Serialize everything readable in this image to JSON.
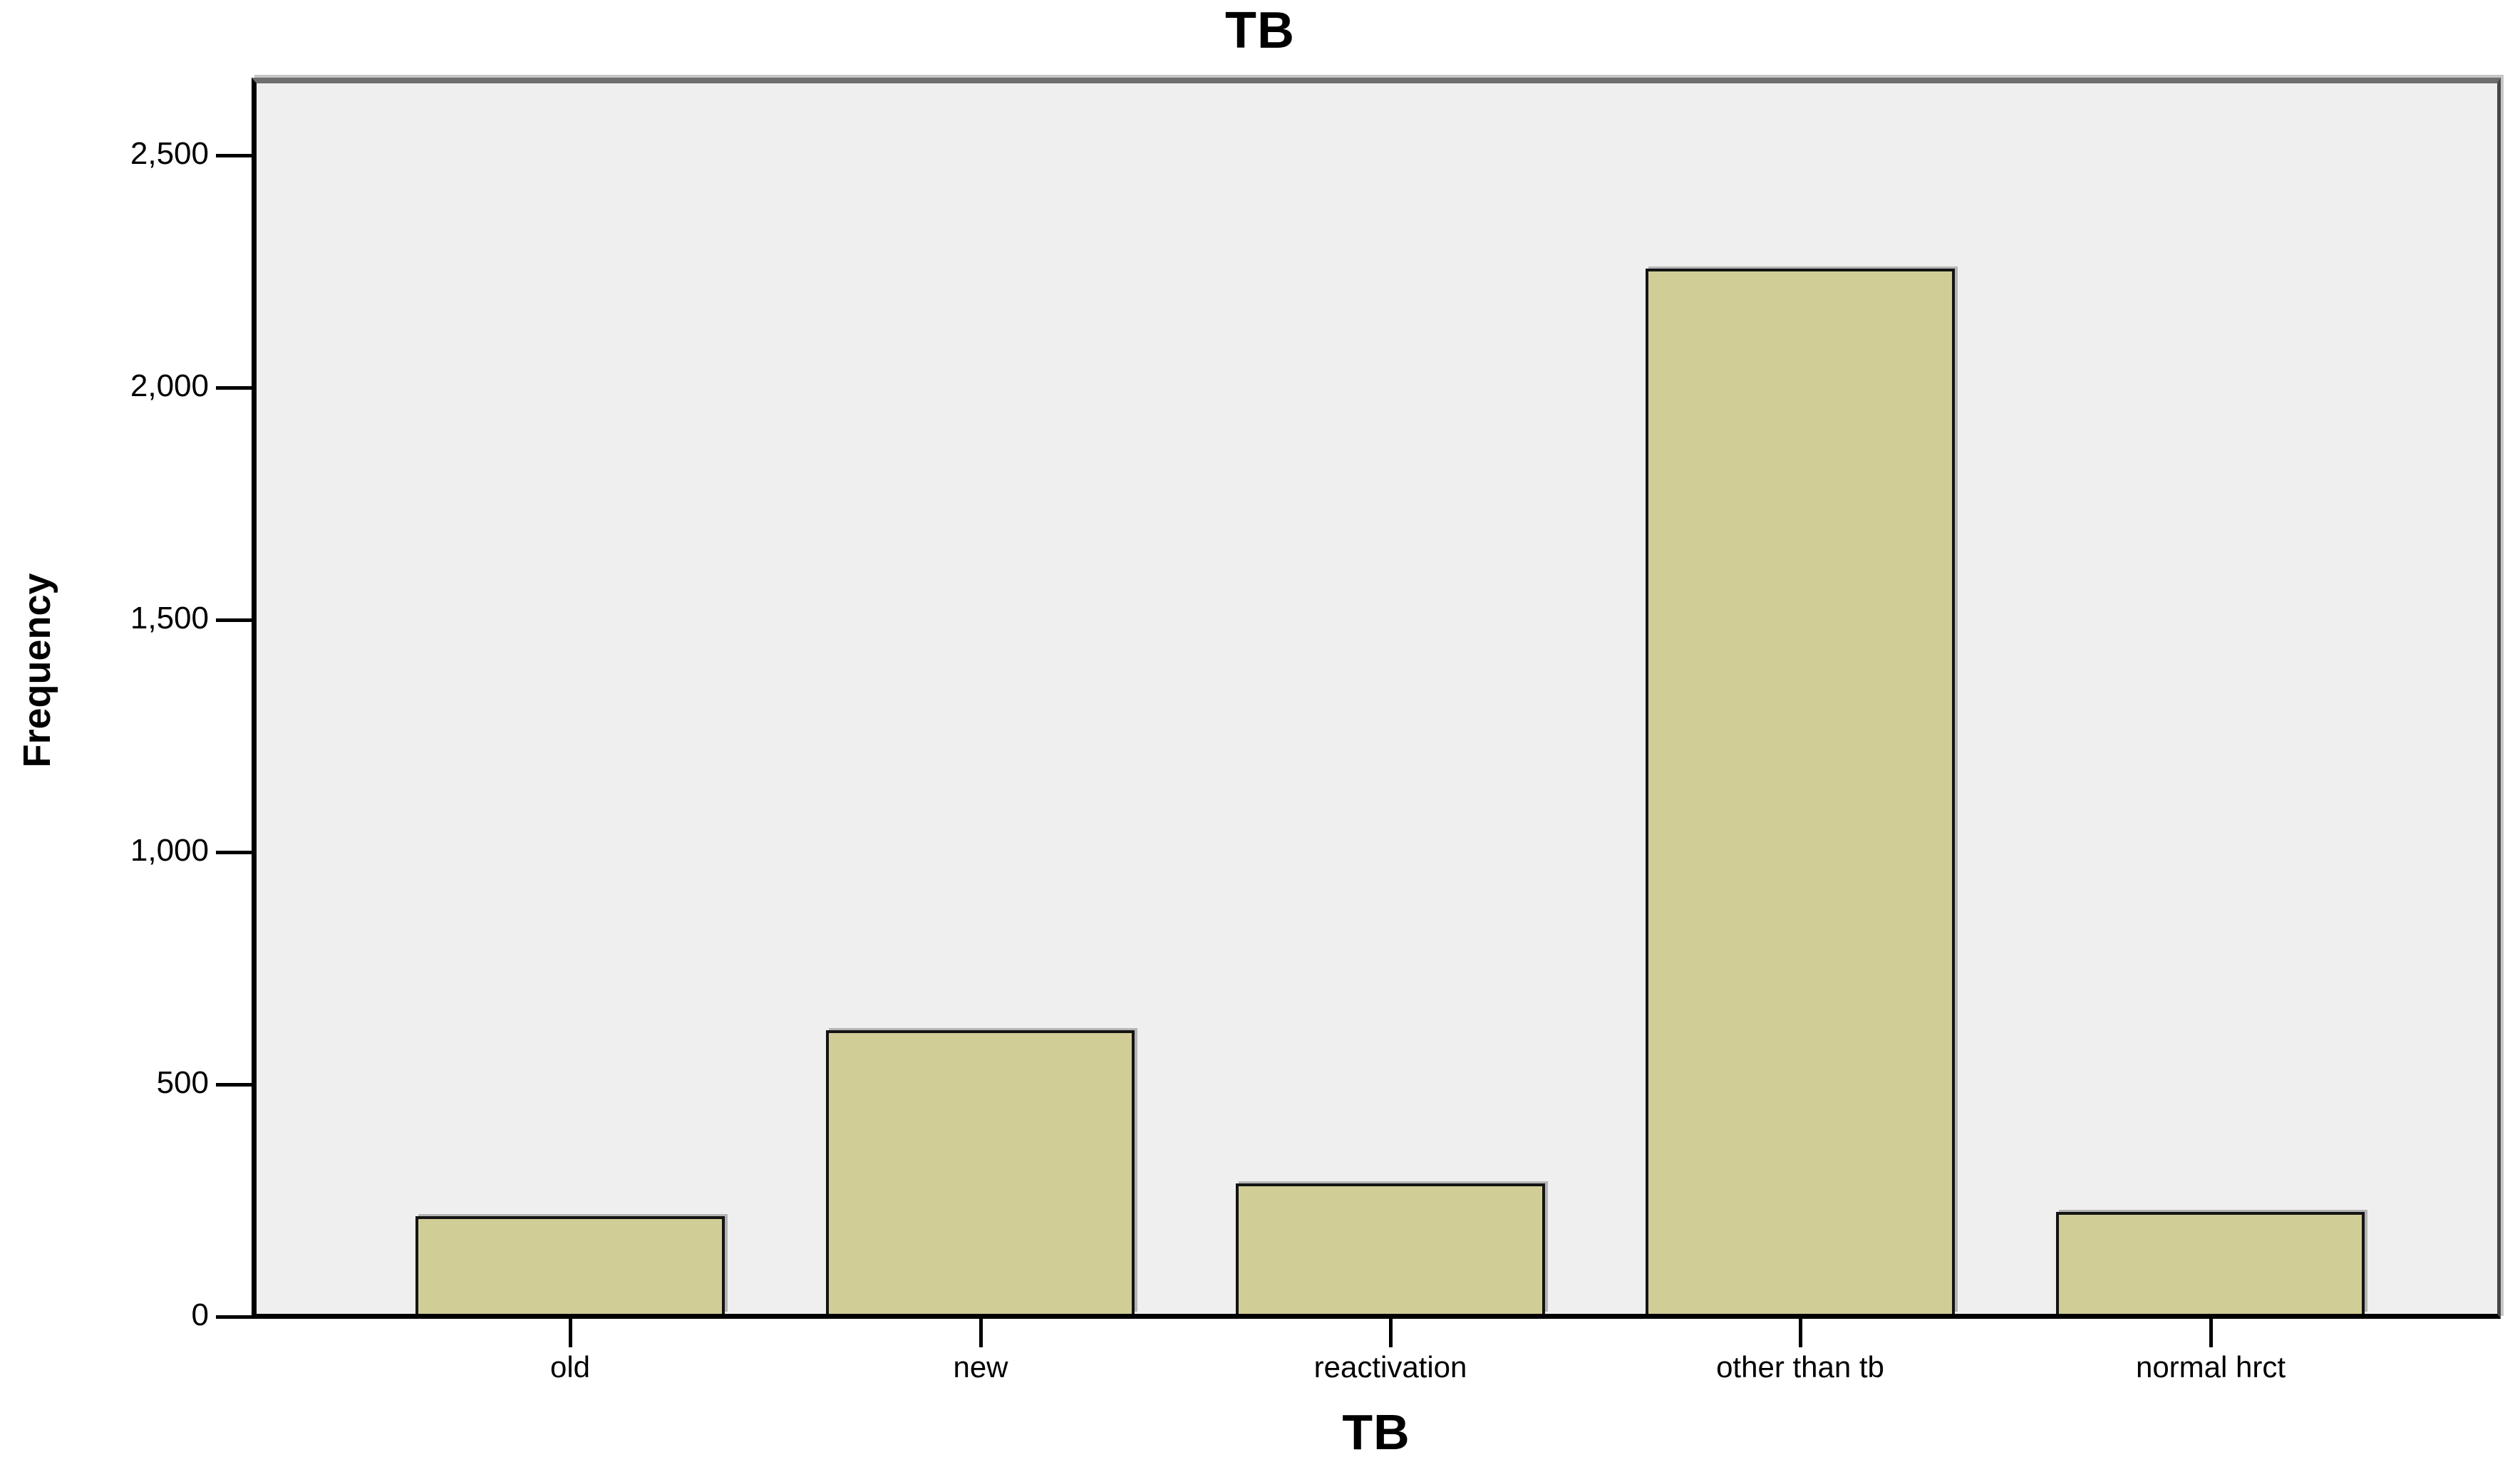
{
  "figure": {
    "title": "TB",
    "y_axis_title": "Frequency",
    "x_axis_title": "TB"
  },
  "chart_data": {
    "type": "bar",
    "title": "TB",
    "xlabel": "TB",
    "ylabel": "Frequency",
    "categories": [
      "old",
      "new",
      "reactivation",
      "other than tb",
      "normal hrct"
    ],
    "values": [
      210,
      610,
      280,
      2250,
      220
    ],
    "y_ticks": [
      0,
      500,
      1000,
      1500,
      2000,
      2500
    ],
    "y_tick_labels": [
      "0",
      "500",
      "1,000",
      "1,500",
      "2,000",
      "2,500"
    ],
    "ylim": [
      0,
      2650
    ],
    "grid": false,
    "legend": false,
    "colors": {
      "bar_fill": "#D1CD96",
      "bar_border": "#141414",
      "bar_bevel": "#B4B4B4",
      "plot_background": "#EFEFEF",
      "frame_top": "#6E6E6E",
      "frame_right": "#474747",
      "axis": "#000000",
      "page_background": "#FFFFFF",
      "text": "#000000"
    }
  }
}
